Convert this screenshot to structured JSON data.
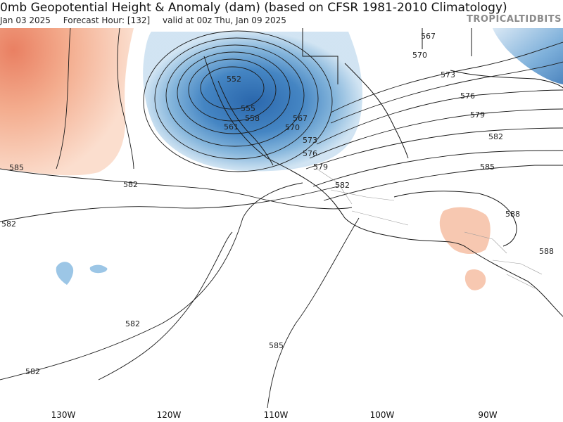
{
  "header": {
    "title": "0mb Geopotential Height & Anomaly (dam) (based on CFSR 1981-2010 Climatology)",
    "init": "Jan 03 2025",
    "forecast_hour": "Forecast Hour: [132]",
    "valid": "valid at 00z Thu, Jan 09 2025"
  },
  "brand": "TROPICALTIDBITS",
  "axis": {
    "lon_labels": [
      "130W",
      "120W",
      "110W",
      "100W",
      "90W"
    ]
  },
  "contours": {
    "labels": [
      "567",
      "570",
      "573",
      "576",
      "579",
      "582",
      "585",
      "588",
      "552",
      "555",
      "558",
      "561",
      "567",
      "570",
      "573",
      "576",
      "579",
      "582",
      "585",
      "582",
      "582",
      "582",
      "585",
      "582",
      "588"
    ]
  },
  "colors": {
    "positive_anomaly": "#f4a582",
    "negative_anomaly": "#3a78b8",
    "contour": "#1a1a1a"
  }
}
